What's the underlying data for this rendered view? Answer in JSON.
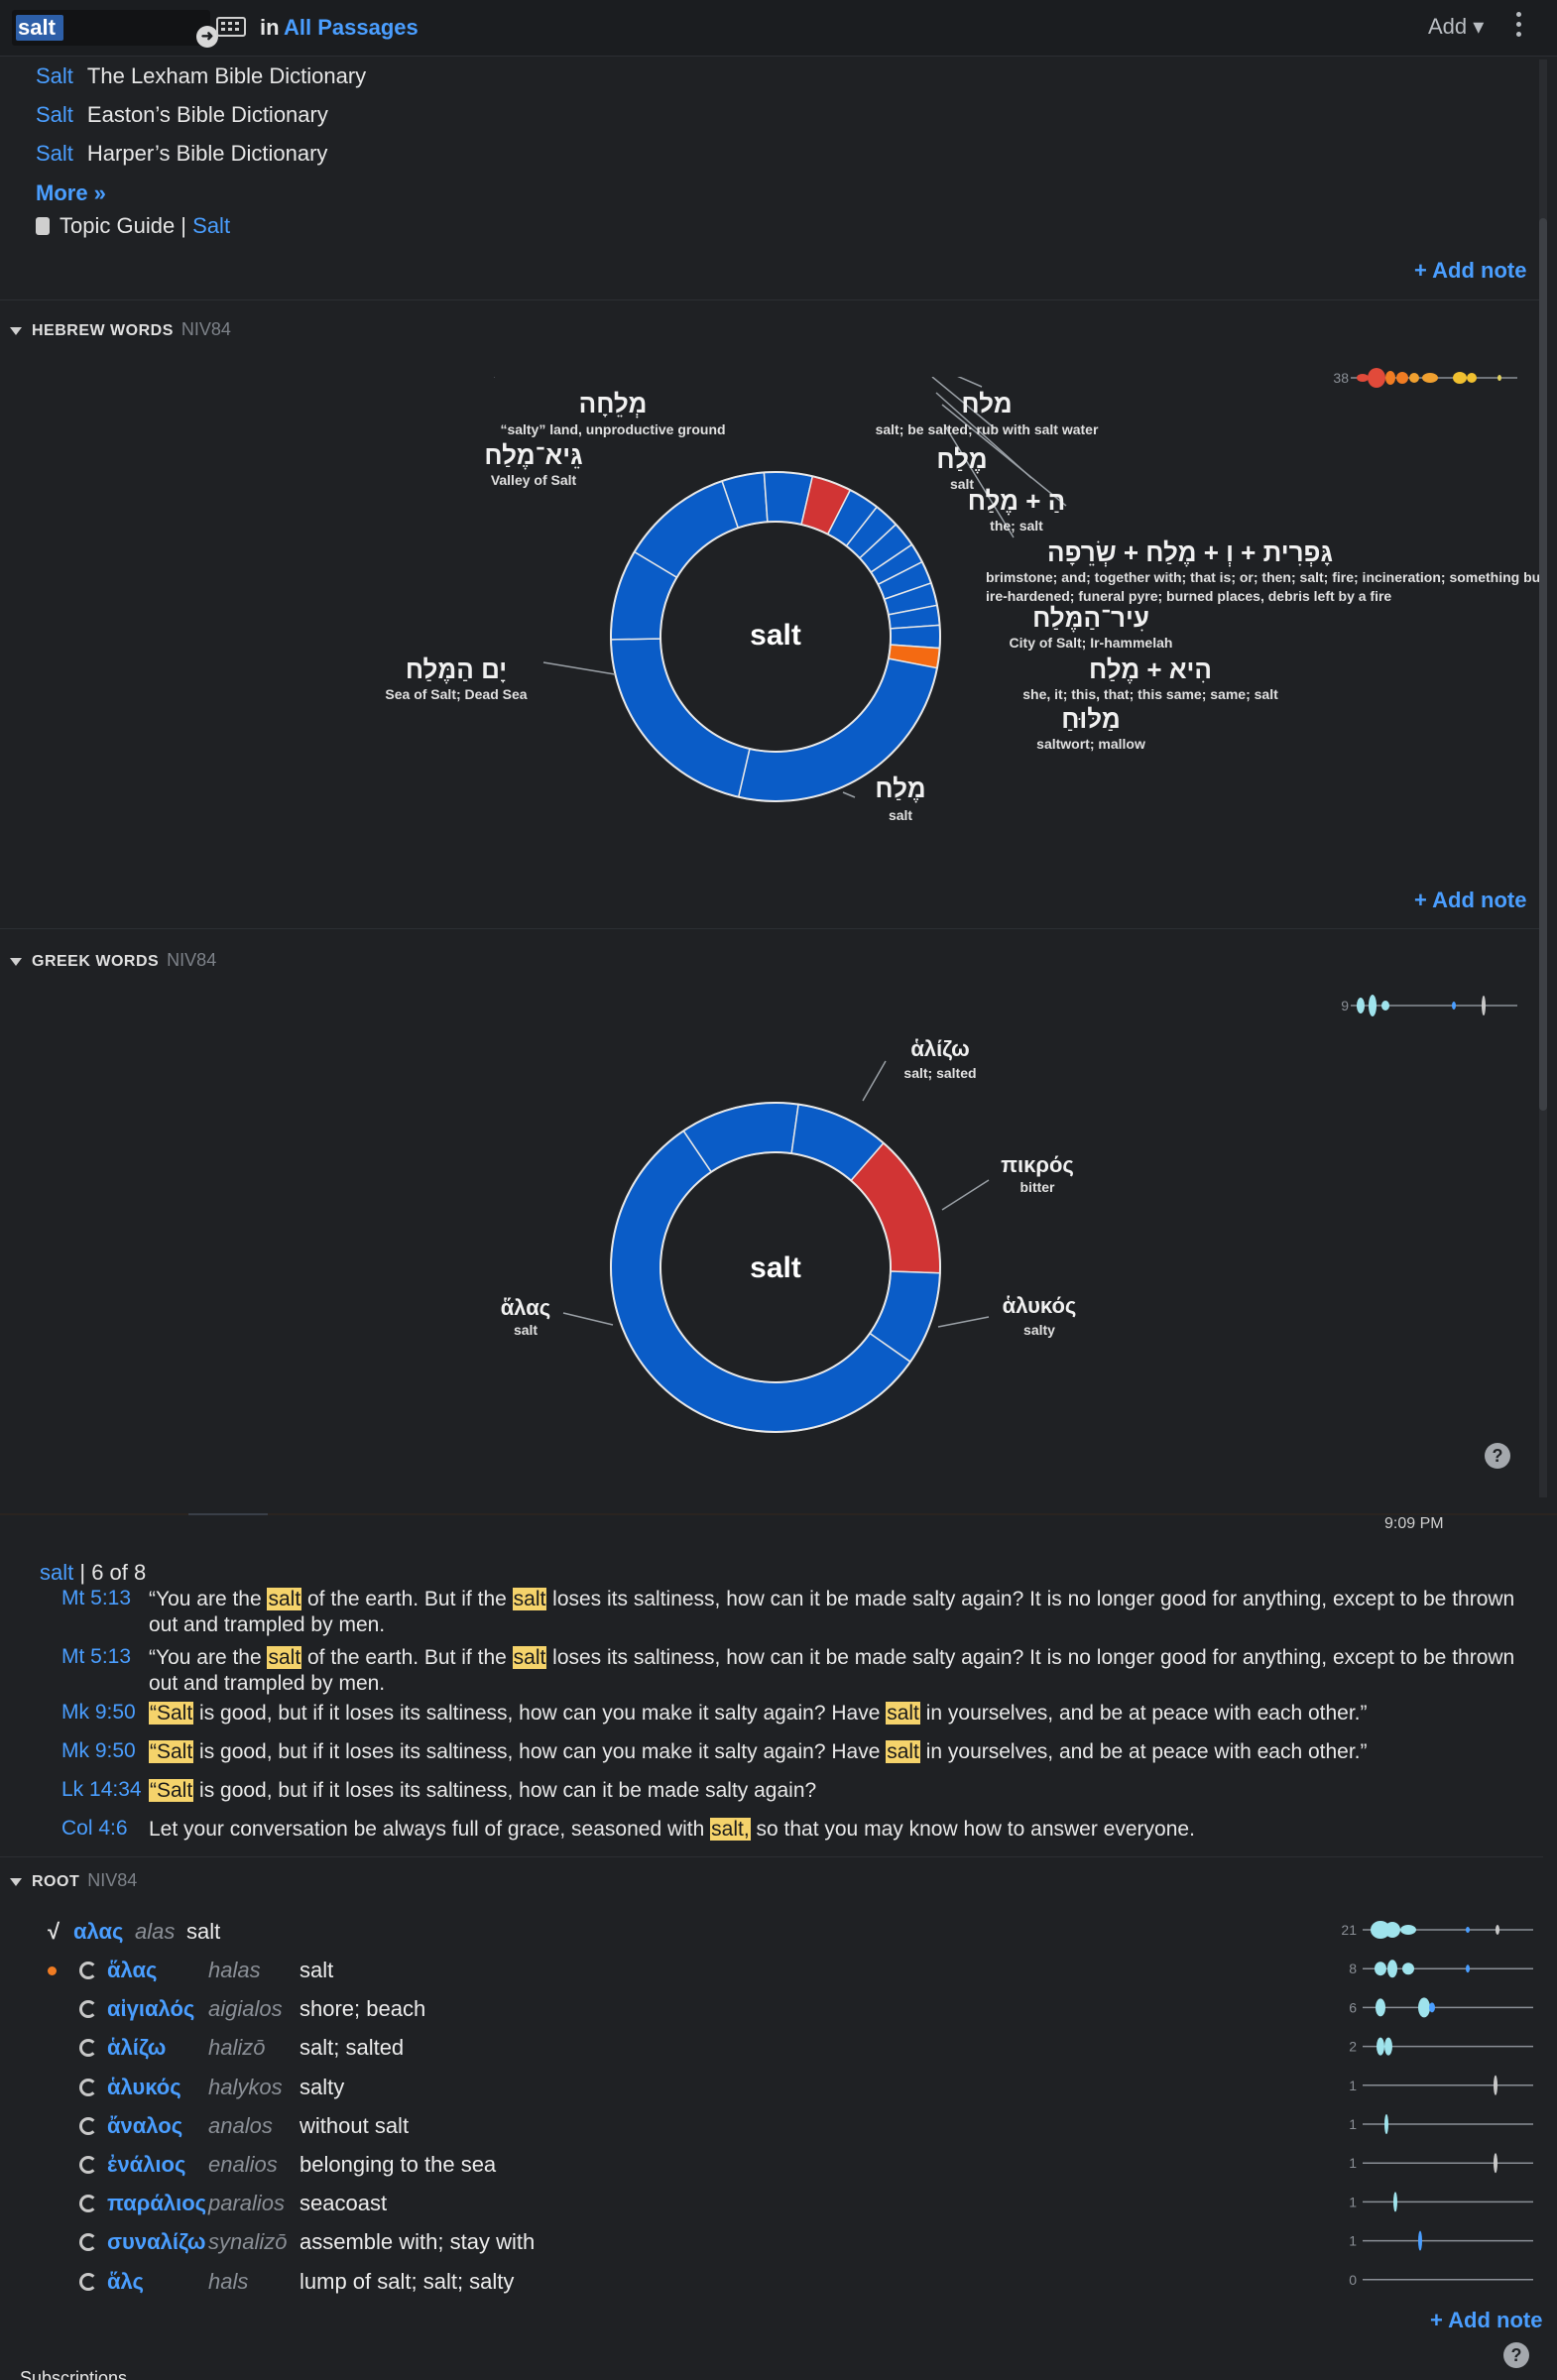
{
  "toolbar": {
    "search_value": "salt",
    "in_label": "in",
    "scope": "All Passages",
    "add_label": "Add ▾",
    "icons": [
      "go-arrow-icon",
      "keyboard-icon",
      "kebab-menu-icon"
    ]
  },
  "dictionaries": [
    {
      "term": "Salt",
      "title": "The Lexham Bible Dictionary"
    },
    {
      "term": "Salt",
      "title": "Easton’s Bible Dictionary"
    },
    {
      "term": "Salt",
      "title": "Harper’s Bible Dictionary"
    }
  ],
  "more_label": "More »",
  "topic_guide": {
    "label": "Topic Guide |",
    "link": "Salt"
  },
  "add_note_label": "+ Add note",
  "hebrew": {
    "heading": "HEBREW WORDS",
    "version": "NIV84",
    "count": "38",
    "center": "salt",
    "labels": [
      {
        "word": "מְלֵחָה",
        "gloss": "“salty” land, unproductive ground"
      },
      {
        "word": "גֵּיא־מֶלַח",
        "gloss": "Valley of Salt"
      },
      {
        "word": "מלח",
        "gloss": "salt; be salted; rub with salt water"
      },
      {
        "word": "מֶלַח",
        "gloss": "salt"
      },
      {
        "word": "הַ + מֶלַח",
        "gloss": "the; salt"
      },
      {
        "word": "גָּפְרִית + וְ + מֶלַח + שְׂרֵפָה",
        "gloss": "brimstone; and; together with; that is; or; then; salt; fire; incineration; something burned, fire-hardened; funeral pyre; burned places, debris left by a fire"
      },
      {
        "word": "עִיר־הַמֶּלַח",
        "gloss": "City of Salt; Ir-hammelah"
      },
      {
        "word": "הִיא + מֶלַח",
        "gloss": "she, it; this, that; this same; same; salt"
      },
      {
        "word": "מַלּוּחַ",
        "gloss": "saltwort; mallow"
      },
      {
        "word": "יָם הַמֶּלַח",
        "gloss": "Sea of Salt; Dead Sea"
      },
      {
        "word": "מֶלַח",
        "gloss": "salt"
      }
    ],
    "colors": {
      "primary": "#0a5cc7",
      "highlight": "#d13434",
      "accent": "#f46a12"
    }
  },
  "greek": {
    "heading": "GREEK WORDS",
    "version": "NIV84",
    "count": "9",
    "center": "salt",
    "labels": [
      {
        "word": "ἁλίζω",
        "gloss": "salt; salted"
      },
      {
        "word": "πικρός",
        "gloss": "bitter"
      },
      {
        "word": "ἁλυκός",
        "gloss": "salty"
      },
      {
        "word": "ἅλας",
        "gloss": "salt"
      }
    ]
  },
  "clock": "9:09 PM",
  "references": {
    "term": "salt",
    "counter": "| 6 of 8",
    "rows": [
      {
        "ref": "Mt 5:13",
        "parts": [
          "“You are the ",
          "salt",
          " of the earth. But if the ",
          "salt",
          " loses its saltiness, how can it be made salty again? It is no longer good for anything, except to be thrown out and trampled by men."
        ]
      },
      {
        "ref": "Mt 5:13",
        "parts": [
          "“You are the ",
          "salt",
          " of the earth. But if the ",
          "salt",
          " loses its saltiness, how can it be made salty again? It is no longer good for anything, except to be thrown out and trampled by men."
        ]
      },
      {
        "ref": "Mk 9:50",
        "parts": [
          "",
          "“Salt",
          " is good, but if it loses its saltiness, how can you make it salty again? Have ",
          "salt",
          " in yourselves, and be at peace with each other.”"
        ]
      },
      {
        "ref": "Mk 9:50",
        "parts": [
          "",
          "“Salt",
          " is good, but if it loses its saltiness, how can you make it salty again? Have ",
          "salt",
          " in yourselves, and be at peace with each other.”"
        ]
      },
      {
        "ref": "Lk 14:34",
        "parts": [
          "",
          "“Salt",
          " is good, but if it loses its saltiness, how can it be made salty again?",
          "",
          ""
        ]
      },
      {
        "ref": "Col 4:6",
        "parts": [
          "Let your conversation be always full of grace, seasoned with ",
          "salt,",
          " so that you may know how to answer everyone.",
          "",
          ""
        ]
      }
    ]
  },
  "root": {
    "heading": "ROOT",
    "version": "NIV84",
    "root_row": {
      "symbol": "√",
      "lemma": "αλας",
      "translit": "alas",
      "gloss": "salt",
      "count": "21"
    },
    "rows": [
      {
        "lemma": "ἅλας",
        "translit": "halas",
        "gloss": "salt",
        "count": "8"
      },
      {
        "lemma": "αἰγιαλός",
        "translit": "aigialos",
        "gloss": "shore; beach",
        "count": "6"
      },
      {
        "lemma": "ἁλίζω",
        "translit": "halizō",
        "gloss": "salt; salted",
        "count": "2"
      },
      {
        "lemma": "ἁλυκός",
        "translit": "halykos",
        "gloss": "salty",
        "count": "1"
      },
      {
        "lemma": "ἄναλος",
        "translit": "analos",
        "gloss": "without salt",
        "count": "1"
      },
      {
        "lemma": "ἐνάλιος",
        "translit": "enalios",
        "gloss": "belonging to the sea",
        "count": "1"
      },
      {
        "lemma": "παράλιος",
        "translit": "paralios",
        "gloss": "seacoast",
        "count": "1"
      },
      {
        "lemma": "συναλίζω",
        "translit": "synalizō",
        "gloss": "assemble with; stay with",
        "count": "1"
      },
      {
        "lemma": "ἅλς",
        "translit": "hals",
        "gloss": "lump of salt; salt; salty",
        "count": "0"
      }
    ]
  },
  "help_label": "?",
  "footer_partial": "Subscriptions"
}
